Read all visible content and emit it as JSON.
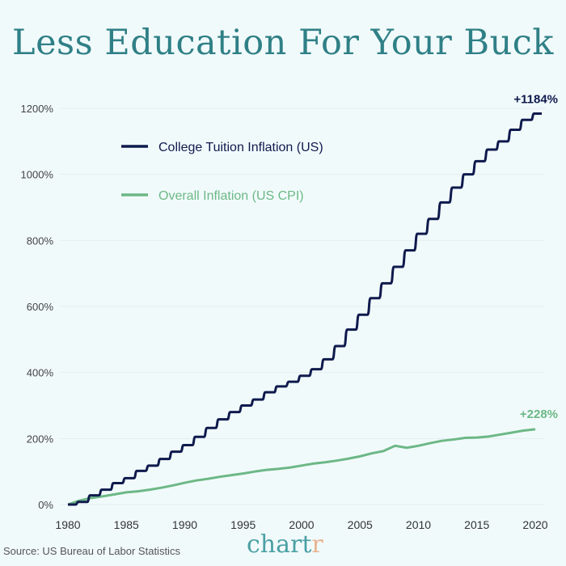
{
  "title": "Less Education For Your Buck",
  "source": "Source: US Bureau of Labor Statistics",
  "logo": {
    "main": "chart",
    "accent": "r"
  },
  "colors": {
    "tuition": "#0f1a4d",
    "cpi": "#6cb886",
    "title": "#2f8086",
    "background": "#f1fafb"
  },
  "chart_data": {
    "type": "line",
    "title": "Less Education For Your Buck",
    "xlabel": "",
    "ylabel": "",
    "xlim": [
      1980,
      2020
    ],
    "ylim": [
      0,
      1200
    ],
    "grid": true,
    "legend_position": "top-left",
    "x_ticks": [
      "1980",
      "1985",
      "1990",
      "1995",
      "2000",
      "2005",
      "2010",
      "2015",
      "2020"
    ],
    "y_ticks": [
      "0%",
      "200%",
      "400%",
      "600%",
      "800%",
      "1000%",
      "1200%"
    ],
    "x": [
      1980,
      1981,
      1982,
      1983,
      1984,
      1985,
      1986,
      1987,
      1988,
      1989,
      1990,
      1991,
      1992,
      1993,
      1994,
      1995,
      1996,
      1997,
      1998,
      1999,
      2000,
      2001,
      2002,
      2003,
      2004,
      2005,
      2006,
      2007,
      2008,
      2009,
      2010,
      2011,
      2012,
      2013,
      2014,
      2015,
      2016,
      2017,
      2018,
      2019,
      2020
    ],
    "series": [
      {
        "name": "College Tuition Inflation (US)",
        "end_label": "+1184%",
        "values": [
          0,
          8,
          28,
          45,
          65,
          80,
          102,
          118,
          138,
          160,
          180,
          205,
          232,
          258,
          280,
          300,
          318,
          340,
          358,
          372,
          390,
          410,
          440,
          480,
          530,
          575,
          625,
          670,
          720,
          770,
          820,
          865,
          915,
          960,
          1000,
          1040,
          1075,
          1100,
          1135,
          1165,
          1184
        ]
      },
      {
        "name": "Overall Inflation (US CPI)",
        "end_label": "+228%",
        "values": [
          0,
          12,
          20,
          25,
          31,
          37,
          40,
          45,
          51,
          58,
          66,
          73,
          78,
          84,
          89,
          94,
          100,
          105,
          108,
          112,
          118,
          124,
          128,
          133,
          139,
          146,
          155,
          162,
          178,
          172,
          178,
          186,
          193,
          197,
          202,
          203,
          206,
          212,
          218,
          224,
          228
        ]
      }
    ]
  }
}
